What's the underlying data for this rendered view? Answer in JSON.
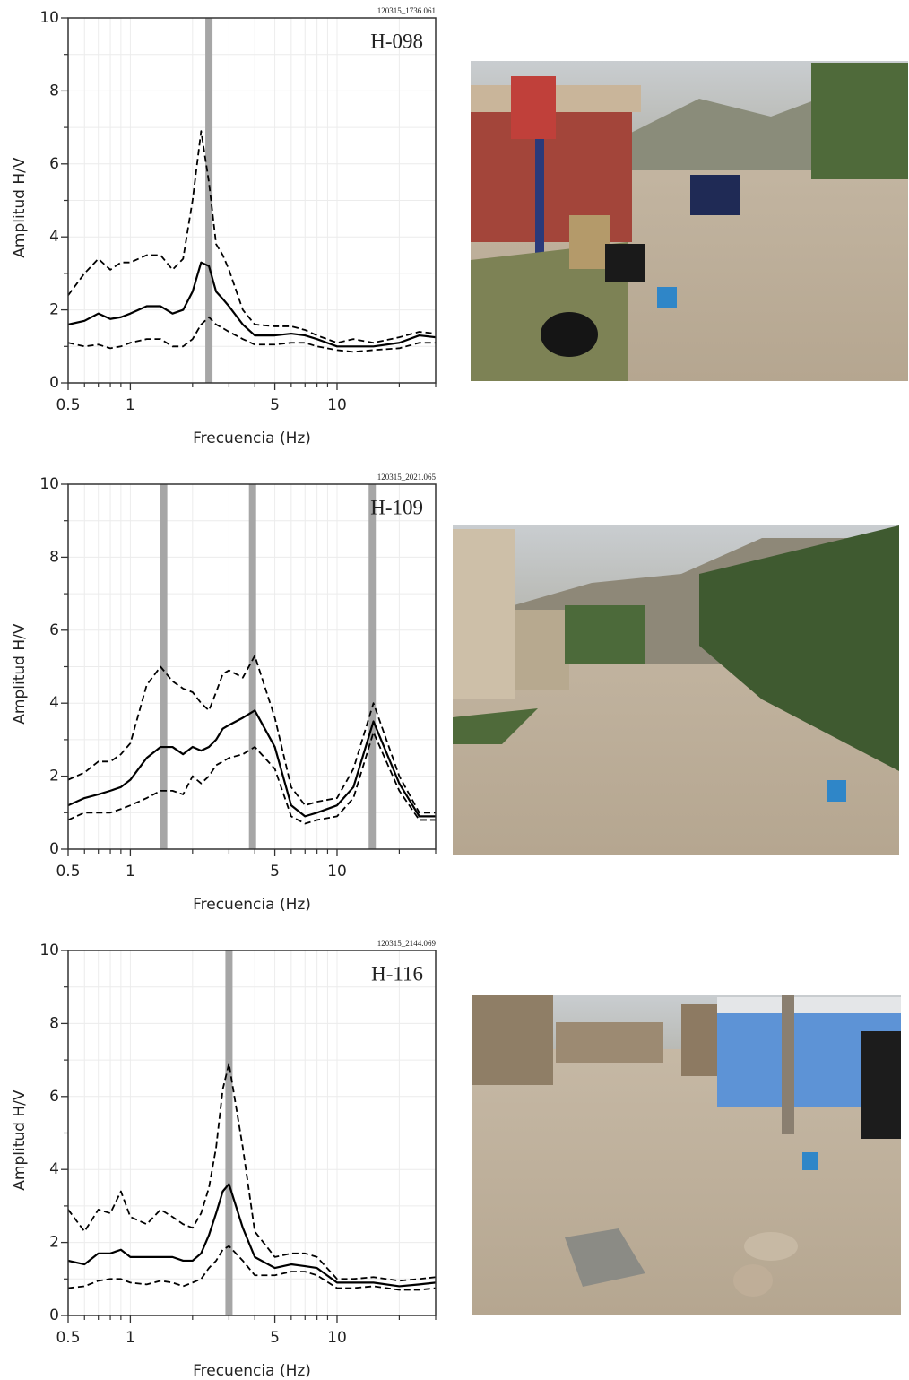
{
  "chart_data": [
    {
      "type": "line",
      "station": "H-098",
      "file_id": "120315_1736.061",
      "x_label": "Frecuencia (Hz)",
      "y_label": "Amplitud H/V",
      "xscale": "log",
      "xlim": [
        0.5,
        30
      ],
      "xticks": [
        0.5,
        1,
        5,
        10
      ],
      "xminorticks": [
        0.6,
        0.7,
        0.8,
        0.9,
        2,
        3,
        4,
        6,
        7,
        8,
        9,
        20,
        30
      ],
      "ylim": [
        0,
        10
      ],
      "yticks": [
        0,
        2,
        4,
        6,
        8,
        10
      ],
      "yminorticks": [
        1,
        3,
        5,
        7,
        9
      ],
      "grid": true,
      "peaks": [
        2.4
      ],
      "peak_color": "#a6a6a6",
      "x": [
        0.5,
        0.6,
        0.7,
        0.8,
        0.9,
        1,
        1.2,
        1.4,
        1.6,
        1.8,
        2,
        2.2,
        2.4,
        2.6,
        2.8,
        3,
        3.5,
        4,
        5,
        6,
        7,
        8,
        10,
        12,
        15,
        20,
        25,
        30
      ],
      "series": [
        {
          "color": "#000000",
          "dashed": false,
          "values": [
            1.6,
            1.7,
            1.9,
            1.75,
            1.8,
            1.9,
            2.1,
            2.1,
            1.9,
            2.0,
            2.5,
            3.3,
            3.2,
            2.5,
            2.3,
            2.1,
            1.6,
            1.3,
            1.3,
            1.35,
            1.3,
            1.2,
            1.0,
            1.0,
            1.0,
            1.1,
            1.3,
            1.25
          ]
        },
        {
          "color": "#000000",
          "dashed": true,
          "values": [
            2.4,
            3.0,
            3.4,
            3.1,
            3.3,
            3.3,
            3.5,
            3.5,
            3.1,
            3.4,
            5.0,
            6.9,
            5.5,
            3.8,
            3.5,
            3.1,
            2.0,
            1.6,
            1.55,
            1.55,
            1.45,
            1.3,
            1.1,
            1.2,
            1.1,
            1.25,
            1.4,
            1.35
          ]
        },
        {
          "color": "#000000",
          "dashed": true,
          "values": [
            1.1,
            1.0,
            1.05,
            0.95,
            1.0,
            1.1,
            1.2,
            1.2,
            1.0,
            1.0,
            1.2,
            1.6,
            1.8,
            1.6,
            1.5,
            1.4,
            1.2,
            1.05,
            1.05,
            1.1,
            1.1,
            1.0,
            0.9,
            0.85,
            0.9,
            0.95,
            1.1,
            1.1
          ]
        }
      ]
    },
    {
      "type": "line",
      "station": "H-109",
      "file_id": "120315_2021.065",
      "x_label": "Frecuencia (Hz)",
      "y_label": "Amplitud H/V",
      "xscale": "log",
      "xlim": [
        0.5,
        30
      ],
      "xticks": [
        0.5,
        1,
        5,
        10
      ],
      "xminorticks": [
        0.6,
        0.7,
        0.8,
        0.9,
        2,
        3,
        4,
        6,
        7,
        8,
        9,
        20,
        30
      ],
      "ylim": [
        0,
        10
      ],
      "yticks": [
        0,
        2,
        4,
        6,
        8,
        10
      ],
      "yminorticks": [
        1,
        3,
        5,
        7,
        9
      ],
      "grid": true,
      "peaks": [
        1.45,
        3.9,
        14.8
      ],
      "peak_color": "#a6a6a6",
      "x": [
        0.5,
        0.6,
        0.7,
        0.8,
        0.9,
        1,
        1.2,
        1.4,
        1.6,
        1.8,
        2,
        2.2,
        2.4,
        2.6,
        2.8,
        3,
        3.5,
        4,
        5,
        6,
        7,
        8,
        10,
        12,
        15,
        20,
        25,
        30
      ],
      "series": [
        {
          "color": "#000000",
          "dashed": false,
          "values": [
            1.2,
            1.4,
            1.5,
            1.6,
            1.7,
            1.9,
            2.5,
            2.8,
            2.8,
            2.6,
            2.8,
            2.7,
            2.8,
            3.0,
            3.3,
            3.4,
            3.6,
            3.8,
            2.8,
            1.2,
            0.9,
            1.0,
            1.2,
            1.7,
            3.5,
            1.8,
            0.9,
            0.9
          ]
        },
        {
          "color": "#000000",
          "dashed": true,
          "values": [
            1.9,
            2.1,
            2.4,
            2.4,
            2.6,
            2.9,
            4.5,
            5.0,
            4.6,
            4.4,
            4.3,
            4.0,
            3.8,
            4.3,
            4.8,
            4.9,
            4.7,
            5.3,
            3.6,
            1.7,
            1.2,
            1.3,
            1.4,
            2.2,
            4.0,
            2.0,
            1.0,
            1.0
          ]
        },
        {
          "color": "#000000",
          "dashed": true,
          "values": [
            0.8,
            1.0,
            1.0,
            1.0,
            1.1,
            1.2,
            1.4,
            1.6,
            1.6,
            1.5,
            2.0,
            1.8,
            2.0,
            2.3,
            2.4,
            2.5,
            2.6,
            2.8,
            2.2,
            0.9,
            0.7,
            0.8,
            0.9,
            1.4,
            3.2,
            1.6,
            0.8,
            0.8
          ]
        }
      ]
    },
    {
      "type": "line",
      "station": "H-116",
      "file_id": "120315_2144.069",
      "x_label": "Frecuencia (Hz)",
      "y_label": "Amplitud H/V",
      "xscale": "log",
      "xlim": [
        0.5,
        30
      ],
      "xticks": [
        0.5,
        1,
        5,
        10
      ],
      "xminorticks": [
        0.6,
        0.7,
        0.8,
        0.9,
        2,
        3,
        4,
        6,
        7,
        8,
        9,
        20,
        30
      ],
      "ylim": [
        0,
        10
      ],
      "yticks": [
        0,
        2,
        4,
        6,
        8,
        10
      ],
      "yminorticks": [
        1,
        3,
        5,
        7,
        9
      ],
      "grid": true,
      "peaks": [
        3.0
      ],
      "peak_color": "#a6a6a6",
      "x": [
        0.5,
        0.6,
        0.7,
        0.8,
        0.9,
        1,
        1.2,
        1.4,
        1.6,
        1.8,
        2,
        2.2,
        2.4,
        2.6,
        2.8,
        3,
        3.5,
        4,
        5,
        6,
        7,
        8,
        10,
        12,
        15,
        20,
        25,
        30
      ],
      "series": [
        {
          "color": "#000000",
          "dashed": false,
          "values": [
            1.5,
            1.4,
            1.7,
            1.7,
            1.8,
            1.6,
            1.6,
            1.6,
            1.6,
            1.5,
            1.5,
            1.7,
            2.2,
            2.8,
            3.4,
            3.6,
            2.4,
            1.6,
            1.3,
            1.4,
            1.35,
            1.3,
            0.9,
            0.9,
            0.9,
            0.8,
            0.85,
            0.9
          ]
        },
        {
          "color": "#000000",
          "dashed": true,
          "values": [
            2.9,
            2.3,
            2.9,
            2.8,
            3.4,
            2.7,
            2.5,
            2.9,
            2.7,
            2.5,
            2.4,
            2.8,
            3.5,
            4.6,
            6.2,
            6.9,
            4.6,
            2.3,
            1.6,
            1.7,
            1.7,
            1.6,
            1.0,
            1.0,
            1.05,
            0.95,
            1.0,
            1.05
          ]
        },
        {
          "color": "#000000",
          "dashed": true,
          "values": [
            0.75,
            0.8,
            0.95,
            1.0,
            1.0,
            0.9,
            0.85,
            0.95,
            0.9,
            0.8,
            0.9,
            1.0,
            1.3,
            1.5,
            1.8,
            1.9,
            1.5,
            1.1,
            1.1,
            1.2,
            1.2,
            1.1,
            0.75,
            0.75,
            0.8,
            0.7,
            0.7,
            0.75
          ]
        }
      ]
    }
  ]
}
